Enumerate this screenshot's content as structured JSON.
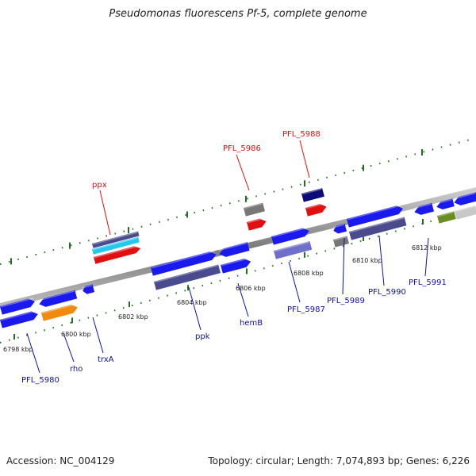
{
  "title": "Pseudomonas fluorescens Pf-5, complete genome",
  "footer": {
    "accession": "Accession: NC_004129",
    "summary": "Topology: circular; Length: 7,074,893 bp; Genes: 6,226"
  },
  "colors": {
    "blue": "#1a1aee",
    "navy": "#0b0b7a",
    "slate": "#4a4a8e",
    "lavender": "#7070cc",
    "cyan": "#22c8ee",
    "red": "#e01010",
    "orange": "#f28a10",
    "gray": "#777777",
    "olive": "#6b8e23",
    "silver": "#c8c8c8",
    "tick_green": "#207020",
    "label_red": "#dd1010",
    "label_blue": "#1010aa"
  },
  "ticks": [
    {
      "label": "6798 kbp"
    },
    {
      "label": "6800 kbp"
    },
    {
      "label": "6802 kbp"
    },
    {
      "label": "6804 kbp"
    },
    {
      "label": "6806 kbp"
    },
    {
      "label": "6808 kbp"
    },
    {
      "label": "6810 kbp"
    },
    {
      "label": "6812 kbp"
    }
  ],
  "labels": {
    "ppx": "ppx",
    "pfl5986": "PFL_5986",
    "pfl5988": "PFL_5988",
    "pfl5980": "PFL_5980",
    "rho": "rho",
    "trxA": "trxA",
    "ppk": "ppk",
    "hemB": "hemB",
    "pfl5987": "PFL_5987",
    "pfl5989": "PFL_5989",
    "pfl5990": "PFL_5990",
    "pfl5991": "PFL_5991"
  }
}
